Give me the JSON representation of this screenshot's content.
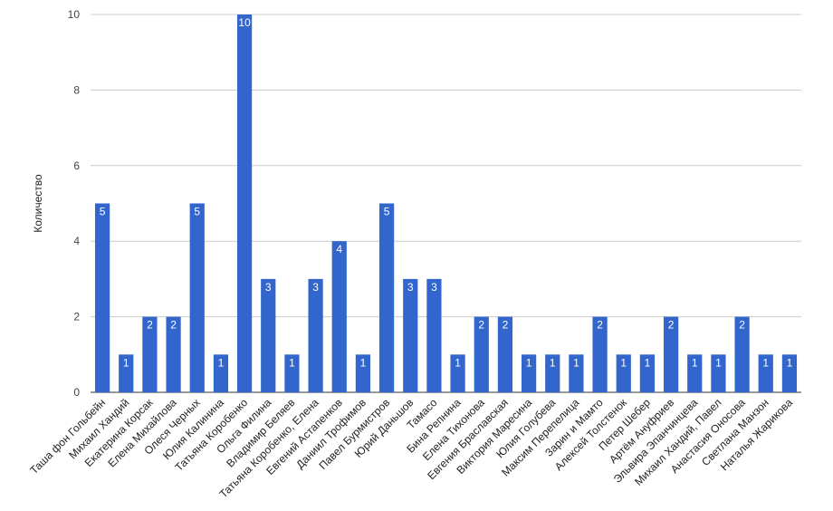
{
  "chart_data": {
    "type": "bar",
    "categories": [
      "Таша фон Гольбейн",
      "Михаил Хандий",
      "Екатерина Корсак",
      "Елена Михайлова",
      "Олеся Черных",
      "Юлия Калинина",
      "Татьяна Коробенко",
      "Ольга Филина",
      "Владимир Беляев",
      "Татьяна Коробенко, Елена",
      "Евгений Астапенков",
      "Даниил Трофимов",
      "Павел Бурмистров",
      "Юрий Даньшов",
      "Тамасо",
      "Бина Репнина",
      "Елена Тихонова",
      "Евгения Браславская",
      "Виктория Маресина",
      "Юлия Голубева",
      "Максим Перепелица",
      "Зарин и Мамто",
      "Алексей Толстенок",
      "Петер Шебер",
      "Артём Ануфриев",
      "Эльвира Эпанчинцева",
      "Михаил Хандий, Павел",
      "Анастасия Оносова",
      "Светлана Манзон",
      "Наталья Жарикова"
    ],
    "values": [
      5,
      1,
      2,
      2,
      5,
      1,
      10,
      3,
      1,
      3,
      4,
      1,
      5,
      3,
      3,
      1,
      2,
      2,
      1,
      1,
      1,
      2,
      1,
      1,
      2,
      1,
      1,
      2,
      1,
      1
    ],
    "title": "",
    "xlabel": "",
    "ylabel": "Количество",
    "ylim": [
      0,
      10
    ],
    "yticks": [
      0,
      2,
      4,
      6,
      8,
      10
    ],
    "grid": true,
    "legend": "none",
    "bar_color": "#3366cc",
    "data_labels": true
  }
}
